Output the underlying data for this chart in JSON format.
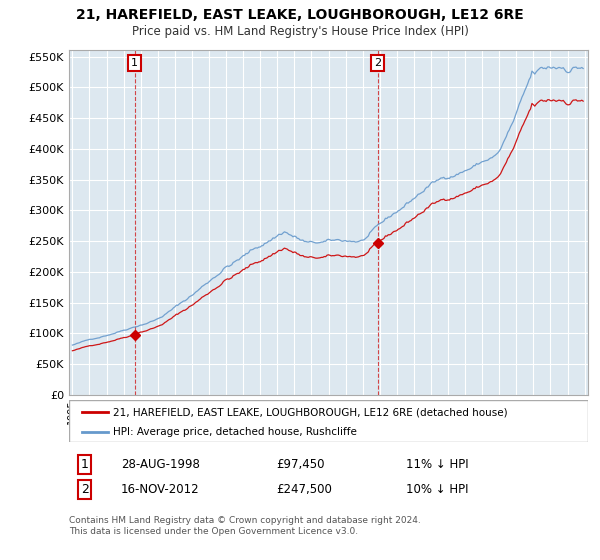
{
  "title": "21, HAREFIELD, EAST LEAKE, LOUGHBOROUGH, LE12 6RE",
  "subtitle": "Price paid vs. HM Land Registry's House Price Index (HPI)",
  "red_label": "21, HAREFIELD, EAST LEAKE, LOUGHBOROUGH, LE12 6RE (detached house)",
  "blue_label": "HPI: Average price, detached house, Rushcliffe",
  "point1_date": "28-AUG-1998",
  "point1_price": "£97,450",
  "point1_hpi": "11% ↓ HPI",
  "point2_date": "16-NOV-2012",
  "point2_price": "£247,500",
  "point2_hpi": "10% ↓ HPI",
  "footer": "Contains HM Land Registry data © Crown copyright and database right 2024.\nThis data is licensed under the Open Government Licence v3.0.",
  "ylim": [
    0,
    560000
  ],
  "yticks": [
    0,
    50000,
    100000,
    150000,
    200000,
    250000,
    300000,
    350000,
    400000,
    450000,
    500000,
    550000
  ],
  "background_color": "#ffffff",
  "plot_bg_color": "#dde8f0",
  "grid_color": "#ffffff",
  "red_color": "#cc0000",
  "blue_color": "#6699cc",
  "sale1_year": 1998.646,
  "sale1_price": 97450,
  "sale2_year": 2012.874,
  "sale2_price": 247500
}
